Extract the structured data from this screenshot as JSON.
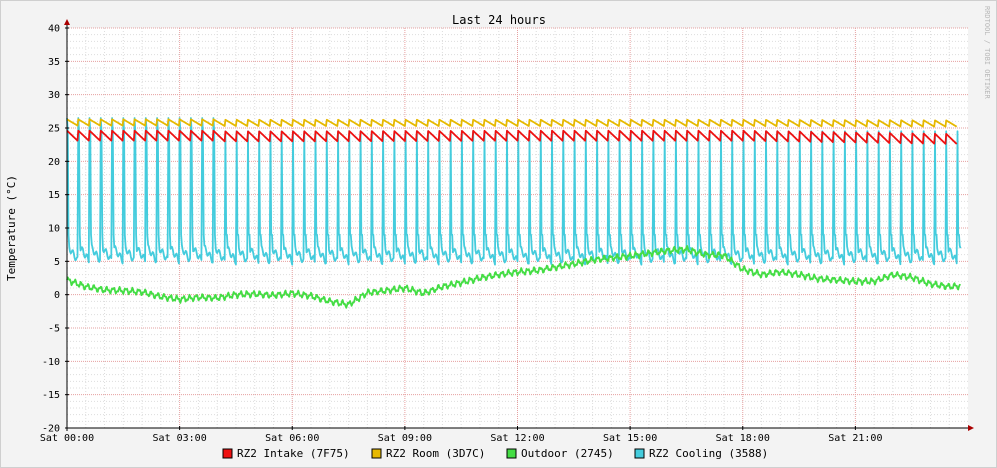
{
  "chart_data": {
    "type": "line",
    "title": "Last 24 hours",
    "ylabel": "Temperature (°C)",
    "xlabel": "",
    "watermark": "RRDTOOL / TOBI OETIKER",
    "ylim": [
      -20,
      40
    ],
    "xlim": [
      0,
      24
    ],
    "yticks": [
      -20,
      -15,
      -10,
      -5,
      0,
      5,
      10,
      15,
      20,
      25,
      30,
      35,
      40
    ],
    "x_tick_positions": [
      0,
      3,
      6,
      9,
      12,
      15,
      18,
      21
    ],
    "x_tick_labels": [
      "Sat 00:00",
      "Sat 03:00",
      "Sat 06:00",
      "Sat 09:00",
      "Sat 12:00",
      "Sat 15:00",
      "Sat 18:00",
      "Sat 21:00"
    ],
    "grid": true,
    "legend_position": "bottom",
    "colors": {
      "background": "#f3f3f3",
      "plot_background": "#ffffff",
      "major_grid": "#e6a0a0",
      "minor_grid": "#dddddd",
      "axis": "#000000",
      "arrow": "#aa0000"
    },
    "series": [
      {
        "name": "RZ2 Intake (7F75)",
        "color": "#ee1111",
        "pattern": "sawtooth",
        "period_hours": 0.3,
        "low": 23.2,
        "high": 24.8,
        "x": [
          0,
          6,
          12,
          18,
          23.7
        ],
        "values": [
          23.8,
          23.8,
          23.9,
          23.9,
          23.4
        ]
      },
      {
        "name": "RZ2 Room (3D7C)",
        "color": "#e6b800",
        "pattern": "sawtooth",
        "period_hours": 0.3,
        "low": 25.3,
        "high": 26.3,
        "x": [
          0,
          6,
          12,
          18,
          23.7
        ],
        "values": [
          25.8,
          25.8,
          25.8,
          25.8,
          25.7
        ]
      },
      {
        "name": "Outdoor (2745)",
        "color": "#44dd44",
        "pattern": "line",
        "x": [
          0,
          0.5,
          1,
          1.5,
          2,
          2.5,
          3,
          3.5,
          4,
          4.5,
          5,
          5.5,
          6,
          6.5,
          7,
          7.5,
          8,
          8.5,
          9,
          9.5,
          10,
          10.5,
          11,
          11.5,
          12,
          12.5,
          13,
          13.5,
          14,
          14.5,
          15,
          15.5,
          16,
          16.5,
          17,
          17.5,
          18,
          18.5,
          19,
          19.5,
          20,
          20.5,
          21,
          21.5,
          22,
          22.5,
          23,
          23.5,
          23.8
        ],
        "values": [
          2.2,
          1.2,
          0.7,
          0.6,
          0.4,
          -0.3,
          -0.7,
          -0.4,
          -0.5,
          0.0,
          0.1,
          -0.1,
          0.2,
          -0.2,
          -1.0,
          -1.5,
          0.3,
          0.6,
          1.0,
          0.2,
          1.2,
          1.8,
          2.5,
          3.0,
          3.4,
          3.6,
          4.1,
          4.6,
          5.2,
          5.5,
          5.8,
          6.2,
          6.6,
          6.8,
          6.0,
          5.9,
          3.8,
          3.0,
          3.4,
          3.0,
          2.4,
          2.2,
          2.0,
          2.0,
          3.0,
          2.6,
          1.6,
          1.2,
          1.3
        ]
      },
      {
        "name": "RZ2 Cooling (3588)",
        "color": "#44ccdd",
        "pattern": "pulse",
        "period_hours": 0.3,
        "low": 5.0,
        "high": 26.5,
        "baseline": 7.0,
        "x": [
          0,
          23.8
        ],
        "values": [
          7.0,
          7.0
        ]
      }
    ]
  }
}
